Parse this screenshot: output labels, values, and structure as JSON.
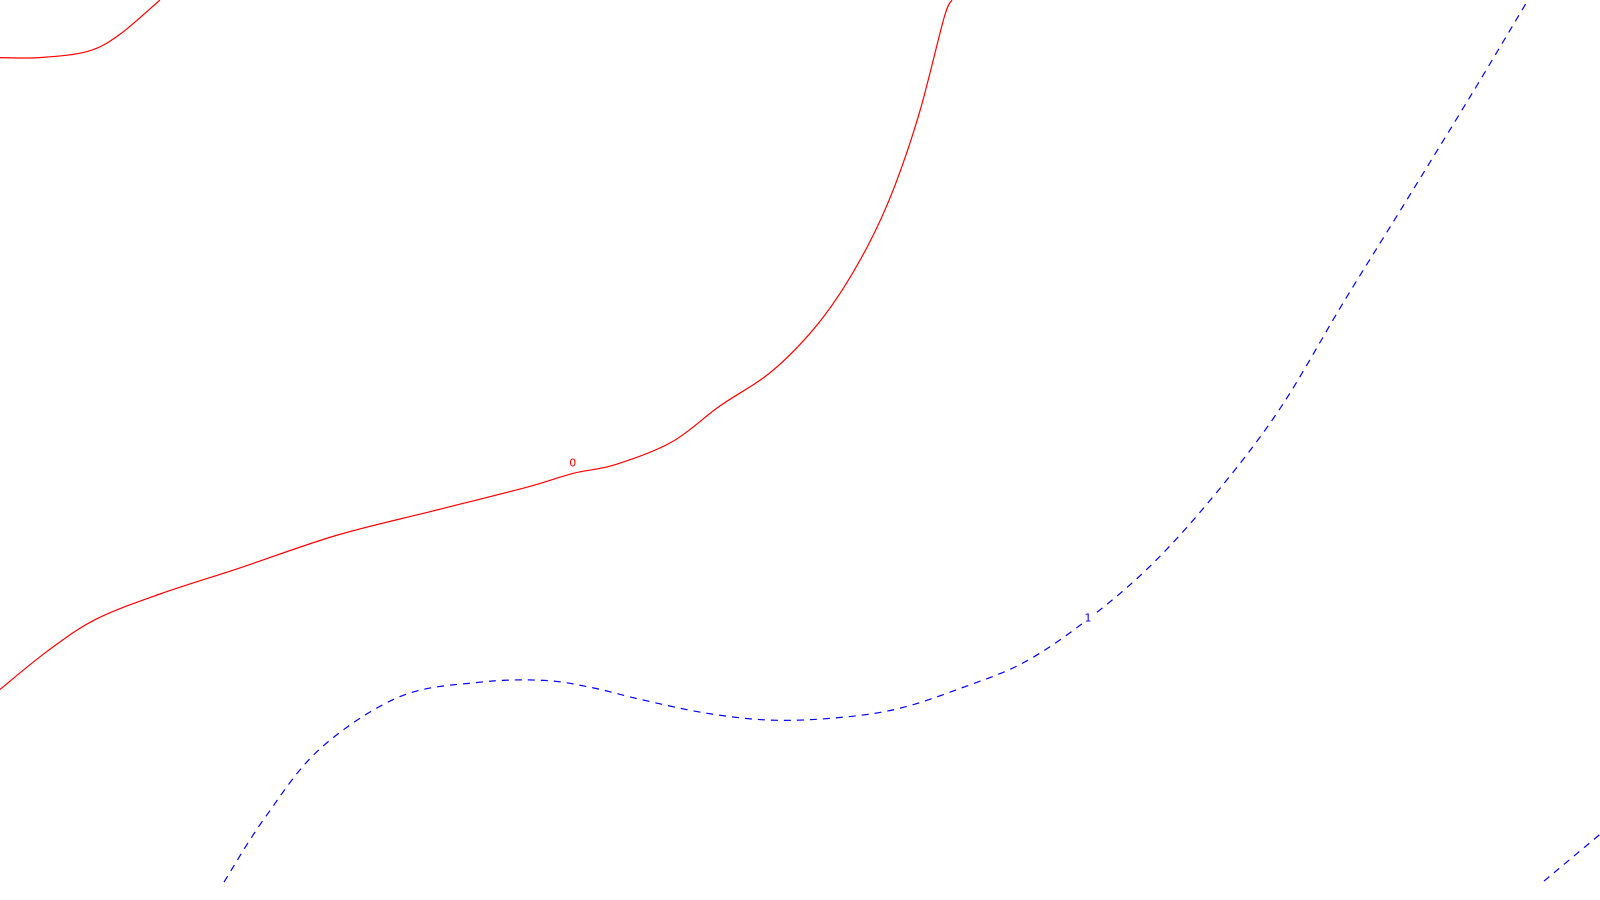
{
  "chart_data": {
    "type": "contour",
    "title": "",
    "xlabel": "",
    "ylabel": "",
    "xlim": [
      0,
      1
    ],
    "ylim": [
      0,
      1
    ],
    "grid": false,
    "series": [
      {
        "level": 0,
        "label": "0",
        "color": "#ff0000",
        "dash": "solid",
        "segments": [
          [
            [
              0.0,
              0.936
            ],
            [
              0.025,
              0.936
            ],
            [
              0.055,
              0.943
            ],
            [
              0.075,
              0.962
            ],
            [
              0.1,
              1.0
            ]
          ],
          [
            [
              0.0,
              0.234
            ],
            [
              0.03,
              0.277
            ],
            [
              0.06,
              0.312
            ],
            [
              0.1,
              0.34
            ],
            [
              0.15,
              0.369
            ],
            [
              0.21,
              0.405
            ],
            [
              0.27,
              0.432
            ],
            [
              0.33,
              0.459
            ],
            [
              0.358,
              0.474
            ],
            [
              0.385,
              0.484
            ],
            [
              0.42,
              0.509
            ],
            [
              0.45,
              0.549
            ],
            [
              0.48,
              0.584
            ],
            [
              0.505,
              0.627
            ],
            [
              0.525,
              0.674
            ],
            [
              0.545,
              0.736
            ],
            [
              0.56,
              0.797
            ],
            [
              0.575,
              0.877
            ],
            [
              0.59,
              0.98
            ],
            [
              0.595,
              1.0
            ]
          ]
        ]
      },
      {
        "level": 1,
        "label": "1",
        "color": "#0000ff",
        "dash": "dashed",
        "segments": [
          [
            [
              0.14,
              0.02
            ],
            [
              0.165,
              0.09
            ],
            [
              0.2,
              0.168
            ],
            [
              0.25,
              0.226
            ],
            [
              0.3,
              0.242
            ],
            [
              0.34,
              0.244
            ],
            [
              0.37,
              0.236
            ],
            [
              0.4,
              0.223
            ],
            [
              0.44,
              0.208
            ],
            [
              0.48,
              0.2
            ],
            [
              0.52,
              0.202
            ],
            [
              0.56,
              0.212
            ],
            [
              0.6,
              0.235
            ],
            [
              0.64,
              0.264
            ],
            [
              0.68,
              0.312
            ],
            [
              0.72,
              0.373
            ],
            [
              0.76,
              0.452
            ],
            [
              0.8,
              0.546
            ],
            [
              0.84,
              0.665
            ],
            [
              0.88,
              0.78
            ],
            [
              0.92,
              0.896
            ],
            [
              0.955,
              1.0
            ]
          ],
          [
            [
              0.965,
              0.021
            ],
            [
              1.0,
              0.073
            ]
          ]
        ]
      }
    ],
    "labels": [
      {
        "text": "0",
        "x": 0.358,
        "y": 0.486,
        "color": "#ff0000"
      },
      {
        "text": "1",
        "x": 0.68,
        "y": 0.314,
        "color": "#0000ff"
      }
    ]
  }
}
